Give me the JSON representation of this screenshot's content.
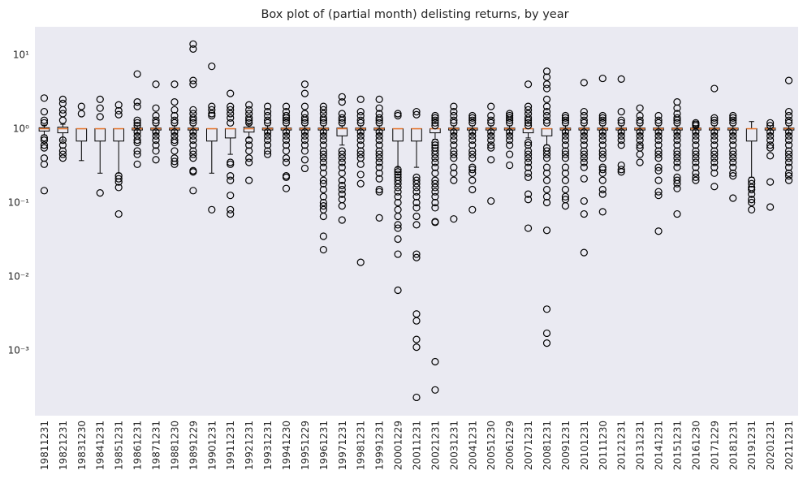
{
  "chart_data": {
    "type": "box",
    "title": "Box plot of (partial month) delisting returns, by year",
    "xlabel": "",
    "ylabel": "",
    "yscale": "log",
    "ylim": [
      0.00013,
      24
    ],
    "grid": false,
    "background_color": "#eaeaf2",
    "median_color": "#e8762c",
    "box_edge_color": "#000000",
    "y_ticks": [
      {
        "value": 10,
        "label": "10¹"
      },
      {
        "value": 1,
        "label": "10⁰"
      },
      {
        "value": 0.1,
        "label": "10⁻¹"
      },
      {
        "value": 0.01,
        "label": "10⁻²"
      },
      {
        "value": 0.001,
        "label": "10⁻³"
      }
    ],
    "categories": [
      "19811231",
      "19821231",
      "19831230",
      "19841231",
      "19851231",
      "19861231",
      "19871231",
      "19881230",
      "19891229",
      "19901231",
      "19911231",
      "19921231",
      "19931231",
      "19941230",
      "19951229",
      "19961231",
      "19971231",
      "19981231",
      "19991231",
      "20001229",
      "20011231",
      "20021231",
      "20031231",
      "20041231",
      "20051230",
      "20061229",
      "20071231",
      "20081231",
      "20091231",
      "20101231",
      "20111230",
      "20121231",
      "20131231",
      "20141231",
      "20151231",
      "20161230",
      "20171229",
      "20181231",
      "20191231",
      "20201231",
      "20211231"
    ],
    "boxes": [
      {
        "q1": 0.93,
        "median": 1.0,
        "q3": 1.03,
        "whisker_low": 0.82,
        "whisker_high": 1.12,
        "fliers": [
          2.6,
          1.7,
          1.3,
          1.2,
          0.75,
          0.7,
          0.6,
          0.55,
          0.4,
          0.33,
          0.145
        ]
      },
      {
        "q1": 0.88,
        "median": 1.0,
        "q3": 1.05,
        "whisker_low": 0.7,
        "whisker_high": 1.15,
        "fliers": [
          2.5,
          2.2,
          1.8,
          1.6,
          1.3,
          0.7,
          0.6,
          0.5,
          0.45,
          0.4
        ]
      },
      {
        "q1": 0.68,
        "median": 1.0,
        "q3": 1.0,
        "whisker_low": 0.37,
        "whisker_high": 1.0,
        "fliers": [
          2.0,
          1.6
        ]
      },
      {
        "q1": 0.68,
        "median": 1.0,
        "q3": 1.0,
        "whisker_low": 0.25,
        "whisker_high": 1.0,
        "fliers": [
          2.5,
          1.9,
          1.45,
          0.135
        ]
      },
      {
        "q1": 0.68,
        "median": 1.0,
        "q3": 1.0,
        "whisker_low": 0.25,
        "whisker_high": 1.0,
        "fliers": [
          2.1,
          1.75,
          1.55,
          0.23,
          0.21,
          0.19,
          0.16,
          0.07
        ]
      },
      {
        "q1": 0.96,
        "median": 1.0,
        "q3": 1.02,
        "whisker_low": 0.85,
        "whisker_high": 1.1,
        "fliers": [
          5.5,
          2.3,
          2.0,
          1.3,
          1.2,
          1.1,
          0.9,
          0.8,
          0.7,
          0.65,
          0.5,
          0.45,
          0.33
        ]
      },
      {
        "q1": 0.96,
        "median": 1.0,
        "q3": 1.02,
        "whisker_low": 0.85,
        "whisker_high": 1.1,
        "fliers": [
          4.0,
          1.9,
          1.5,
          1.3,
          1.2,
          0.9,
          0.8,
          0.7,
          0.6,
          0.5,
          0.38
        ]
      },
      {
        "q1": 0.96,
        "median": 1.0,
        "q3": 1.02,
        "whisker_low": 0.85,
        "whisker_high": 1.1,
        "fliers": [
          4.0,
          2.3,
          1.8,
          1.5,
          1.3,
          1.2,
          0.9,
          0.8,
          0.7,
          0.65,
          0.5,
          0.4,
          0.36,
          0.33
        ]
      },
      {
        "q1": 0.96,
        "median": 1.0,
        "q3": 1.02,
        "whisker_low": 0.85,
        "whisker_high": 1.1,
        "fliers": [
          14.0,
          12.0,
          4.5,
          4.0,
          1.8,
          1.6,
          1.4,
          1.3,
          1.2,
          0.9,
          0.8,
          0.7,
          0.6,
          0.5,
          0.45,
          0.4,
          0.27,
          0.26,
          0.145
        ]
      },
      {
        "q1": 0.68,
        "median": 1.0,
        "q3": 1.0,
        "whisker_low": 0.25,
        "whisker_high": 1.0,
        "fliers": [
          7.0,
          2.0,
          1.8,
          1.6,
          1.5,
          0.08
        ]
      },
      {
        "q1": 0.75,
        "median": 1.0,
        "q3": 1.0,
        "whisker_low": 0.45,
        "whisker_high": 1.0,
        "fliers": [
          3.0,
          2.0,
          1.8,
          1.6,
          1.4,
          1.2,
          0.35,
          0.33,
          0.23,
          0.2,
          0.125,
          0.08,
          0.07
        ]
      },
      {
        "q1": 0.9,
        "median": 1.0,
        "q3": 1.05,
        "whisker_low": 0.75,
        "whisker_high": 1.15,
        "fliers": [
          2.1,
          1.8,
          1.6,
          1.4,
          1.3,
          1.2,
          0.7,
          0.6,
          0.5,
          0.4,
          0.35,
          0.2
        ]
      },
      {
        "q1": 0.96,
        "median": 1.0,
        "q3": 1.02,
        "whisker_low": 0.85,
        "whisker_high": 1.1,
        "fliers": [
          2.0,
          1.7,
          1.5,
          1.3,
          1.2,
          0.9,
          0.8,
          0.7,
          0.6,
          0.5,
          0.45
        ]
      },
      {
        "q1": 0.96,
        "median": 1.0,
        "q3": 1.02,
        "whisker_low": 0.85,
        "whisker_high": 1.1,
        "fliers": [
          2.0,
          1.7,
          1.5,
          1.4,
          1.3,
          1.2,
          0.9,
          0.8,
          0.7,
          0.6,
          0.5,
          0.4,
          0.35,
          0.23,
          0.22,
          0.155
        ]
      },
      {
        "q1": 0.96,
        "median": 1.0,
        "q3": 1.02,
        "whisker_low": 0.85,
        "whisker_high": 1.1,
        "fliers": [
          4.0,
          3.0,
          2.0,
          1.6,
          1.4,
          1.3,
          1.2,
          0.9,
          0.8,
          0.7,
          0.6,
          0.5,
          0.38,
          0.29
        ]
      },
      {
        "q1": 0.96,
        "median": 1.0,
        "q3": 1.02,
        "whisker_low": 0.85,
        "whisker_high": 1.1,
        "fliers": [
          2.0,
          1.8,
          1.6,
          1.4,
          1.3,
          1.2,
          0.9,
          0.8,
          0.7,
          0.6,
          0.5,
          0.45,
          0.4,
          0.35,
          0.3,
          0.25,
          0.2,
          0.18,
          0.15,
          0.12,
          0.1,
          0.09,
          0.08,
          0.065,
          0.035,
          0.023
        ]
      },
      {
        "q1": 0.8,
        "median": 1.0,
        "q3": 1.02,
        "whisker_low": 0.6,
        "whisker_high": 1.1,
        "fliers": [
          2.7,
          2.3,
          1.6,
          1.4,
          1.3,
          1.2,
          0.5,
          0.45,
          0.4,
          0.35,
          0.3,
          0.25,
          0.2,
          0.17,
          0.15,
          0.13,
          0.11,
          0.09,
          0.058
        ]
      },
      {
        "q1": 0.96,
        "median": 1.0,
        "q3": 1.02,
        "whisker_low": 0.85,
        "whisker_high": 1.1,
        "fliers": [
          2.5,
          1.7,
          1.5,
          1.3,
          1.2,
          0.9,
          0.8,
          0.7,
          0.6,
          0.5,
          0.45,
          0.4,
          0.33,
          0.24,
          0.18,
          0.0155
        ]
      },
      {
        "q1": 0.96,
        "median": 1.0,
        "q3": 1.02,
        "whisker_low": 0.85,
        "whisker_high": 1.1,
        "fliers": [
          2.5,
          1.9,
          1.6,
          1.4,
          1.3,
          1.2,
          0.9,
          0.8,
          0.7,
          0.6,
          0.5,
          0.45,
          0.4,
          0.35,
          0.3,
          0.25,
          0.21,
          0.15,
          0.14,
          0.062
        ]
      },
      {
        "q1": 0.68,
        "median": 1.0,
        "q3": 1.0,
        "whisker_low": 0.3,
        "whisker_high": 1.0,
        "fliers": [
          1.6,
          1.5,
          0.28,
          0.26,
          0.24,
          0.22,
          0.2,
          0.18,
          0.16,
          0.14,
          0.12,
          0.1,
          0.08,
          0.065,
          0.05,
          0.045,
          0.032,
          0.02,
          0.0065
        ]
      },
      {
        "q1": 0.68,
        "median": 1.0,
        "q3": 1.0,
        "whisker_low": 0.3,
        "whisker_high": 1.0,
        "fliers": [
          1.7,
          1.55,
          0.22,
          0.2,
          0.18,
          0.16,
          0.14,
          0.12,
          0.1,
          0.085,
          0.065,
          0.05,
          0.02,
          0.018,
          0.0031,
          0.0025,
          0.0014,
          0.0011,
          0.00023
        ]
      },
      {
        "q1": 0.88,
        "median": 1.0,
        "q3": 1.0,
        "whisker_low": 0.72,
        "whisker_high": 1.0,
        "fliers": [
          1.5,
          1.4,
          1.3,
          1.2,
          1.1,
          0.65,
          0.6,
          0.55,
          0.5,
          0.45,
          0.4,
          0.35,
          0.3,
          0.25,
          0.2,
          0.18,
          0.16,
          0.14,
          0.12,
          0.1,
          0.085,
          0.055,
          0.054,
          0.0007,
          0.00029
        ]
      },
      {
        "q1": 0.96,
        "median": 1.0,
        "q3": 1.02,
        "whisker_low": 0.85,
        "whisker_high": 1.1,
        "fliers": [
          2.0,
          1.7,
          1.5,
          1.3,
          1.2,
          0.9,
          0.8,
          0.7,
          0.6,
          0.5,
          0.45,
          0.4,
          0.3,
          0.25,
          0.2,
          0.06
        ]
      },
      {
        "q1": 0.96,
        "median": 1.0,
        "q3": 1.02,
        "whisker_low": 0.85,
        "whisker_high": 1.1,
        "fliers": [
          1.5,
          1.4,
          1.3,
          1.2,
          0.9,
          0.8,
          0.7,
          0.6,
          0.5,
          0.45,
          0.4,
          0.3,
          0.28,
          0.25,
          0.2,
          0.15,
          0.08
        ]
      },
      {
        "q1": 0.96,
        "median": 1.0,
        "q3": 1.02,
        "whisker_low": 0.85,
        "whisker_high": 1.1,
        "fliers": [
          2.0,
          1.5,
          1.3,
          1.2,
          0.9,
          0.8,
          0.7,
          0.6,
          0.55,
          0.38,
          0.105
        ]
      },
      {
        "q1": 0.96,
        "median": 1.0,
        "q3": 1.02,
        "whisker_low": 0.85,
        "whisker_high": 1.1,
        "fliers": [
          1.6,
          1.5,
          1.4,
          1.3,
          1.2,
          0.9,
          0.8,
          0.7,
          0.6,
          0.45,
          0.32
        ]
      },
      {
        "q1": 0.88,
        "median": 1.0,
        "q3": 1.0,
        "whisker_low": 0.75,
        "whisker_high": 1.0,
        "fliers": [
          4.0,
          2.0,
          1.8,
          1.6,
          1.4,
          1.3,
          1.2,
          1.1,
          0.65,
          0.6,
          0.5,
          0.45,
          0.4,
          0.35,
          0.3,
          0.25,
          0.22,
          0.13,
          0.11,
          0.045
        ]
      },
      {
        "q1": 0.8,
        "median": 1.0,
        "q3": 1.0,
        "whisker_low": 0.6,
        "whisker_high": 1.0,
        "fliers": [
          6.0,
          5.0,
          4.0,
          3.5,
          2.5,
          2.0,
          1.7,
          1.5,
          1.3,
          1.2,
          0.55,
          0.5,
          0.45,
          0.4,
          0.3,
          0.25,
          0.2,
          0.15,
          0.12,
          0.1,
          0.042,
          0.0036,
          0.0017,
          0.00125
        ]
      },
      {
        "q1": 0.96,
        "median": 1.0,
        "q3": 1.02,
        "whisker_low": 0.85,
        "whisker_high": 1.1,
        "fliers": [
          1.5,
          1.4,
          1.3,
          1.2,
          0.9,
          0.8,
          0.7,
          0.6,
          0.5,
          0.45,
          0.4,
          0.3,
          0.25,
          0.2,
          0.15,
          0.12,
          0.11,
          0.09
        ]
      },
      {
        "q1": 0.96,
        "median": 1.0,
        "q3": 1.02,
        "whisker_low": 0.85,
        "whisker_high": 1.1,
        "fliers": [
          4.2,
          1.7,
          1.5,
          1.3,
          1.2,
          0.9,
          0.8,
          0.7,
          0.6,
          0.5,
          0.45,
          0.4,
          0.35,
          0.3,
          0.21,
          0.105,
          0.07,
          0.021
        ]
      },
      {
        "q1": 0.96,
        "median": 1.0,
        "q3": 1.02,
        "whisker_low": 0.85,
        "whisker_high": 1.1,
        "fliers": [
          4.8,
          1.5,
          1.4,
          1.3,
          1.2,
          0.9,
          0.8,
          0.7,
          0.6,
          0.5,
          0.45,
          0.4,
          0.3,
          0.28,
          0.25,
          0.2,
          0.15,
          0.13,
          0.075
        ]
      },
      {
        "q1": 0.96,
        "median": 1.0,
        "q3": 1.02,
        "whisker_low": 0.85,
        "whisker_high": 1.1,
        "fliers": [
          4.7,
          1.7,
          1.3,
          1.2,
          0.9,
          0.8,
          0.7,
          0.6,
          0.32,
          0.28,
          0.26
        ]
      },
      {
        "q1": 0.96,
        "median": 1.0,
        "q3": 1.02,
        "whisker_low": 0.85,
        "whisker_high": 1.1,
        "fliers": [
          1.9,
          1.5,
          1.3,
          1.2,
          0.9,
          0.8,
          0.7,
          0.6,
          0.55,
          0.45,
          0.35
        ]
      },
      {
        "q1": 0.96,
        "median": 1.0,
        "q3": 1.02,
        "whisker_low": 0.85,
        "whisker_high": 1.1,
        "fliers": [
          1.5,
          1.3,
          1.2,
          0.9,
          0.8,
          0.7,
          0.6,
          0.5,
          0.45,
          0.4,
          0.3,
          0.27,
          0.2,
          0.14,
          0.125,
          0.041
        ]
      },
      {
        "q1": 0.96,
        "median": 1.0,
        "q3": 1.02,
        "whisker_low": 0.85,
        "whisker_high": 1.1,
        "fliers": [
          2.3,
          1.9,
          1.6,
          1.4,
          1.3,
          1.2,
          0.9,
          0.8,
          0.7,
          0.6,
          0.5,
          0.45,
          0.4,
          0.35,
          0.3,
          0.22,
          0.2,
          0.18,
          0.155,
          0.07
        ]
      },
      {
        "q1": 0.96,
        "median": 1.0,
        "q3": 1.02,
        "whisker_low": 0.85,
        "whisker_high": 1.1,
        "fliers": [
          1.2,
          1.15,
          1.1,
          0.9,
          0.8,
          0.7,
          0.6,
          0.5,
          0.45,
          0.4,
          0.35,
          0.3,
          0.25,
          0.22,
          0.2
        ]
      },
      {
        "q1": 0.96,
        "median": 1.0,
        "q3": 1.02,
        "whisker_low": 0.85,
        "whisker_high": 1.1,
        "fliers": [
          3.5,
          1.4,
          1.3,
          1.2,
          0.9,
          0.8,
          0.7,
          0.6,
          0.5,
          0.45,
          0.4,
          0.35,
          0.3,
          0.25,
          0.165
        ]
      },
      {
        "q1": 0.96,
        "median": 1.0,
        "q3": 1.02,
        "whisker_low": 0.85,
        "whisker_high": 1.1,
        "fliers": [
          1.5,
          1.4,
          1.3,
          1.2,
          0.9,
          0.8,
          0.7,
          0.6,
          0.5,
          0.45,
          0.4,
          0.35,
          0.3,
          0.25,
          0.23,
          0.115
        ]
      },
      {
        "q1": 0.68,
        "median": 1.0,
        "q3": 1.0,
        "whisker_low": 0.22,
        "whisker_high": 1.25,
        "fliers": [
          0.2,
          0.18,
          0.16,
          0.15,
          0.13,
          0.11,
          0.1,
          0.08
        ]
      },
      {
        "q1": 0.96,
        "median": 1.0,
        "q3": 1.02,
        "whisker_low": 0.85,
        "whisker_high": 1.1,
        "fliers": [
          1.2,
          1.1,
          0.9,
          0.8,
          0.7,
          0.6,
          0.55,
          0.43,
          0.19,
          0.087
        ]
      },
      {
        "q1": 0.96,
        "median": 1.0,
        "q3": 1.02,
        "whisker_low": 0.85,
        "whisker_high": 1.1,
        "fliers": [
          4.5,
          1.7,
          1.5,
          1.3,
          1.2,
          0.9,
          0.8,
          0.7,
          0.6,
          0.5,
          0.45,
          0.4,
          0.35,
          0.3,
          0.25,
          0.23,
          0.2
        ]
      }
    ]
  }
}
